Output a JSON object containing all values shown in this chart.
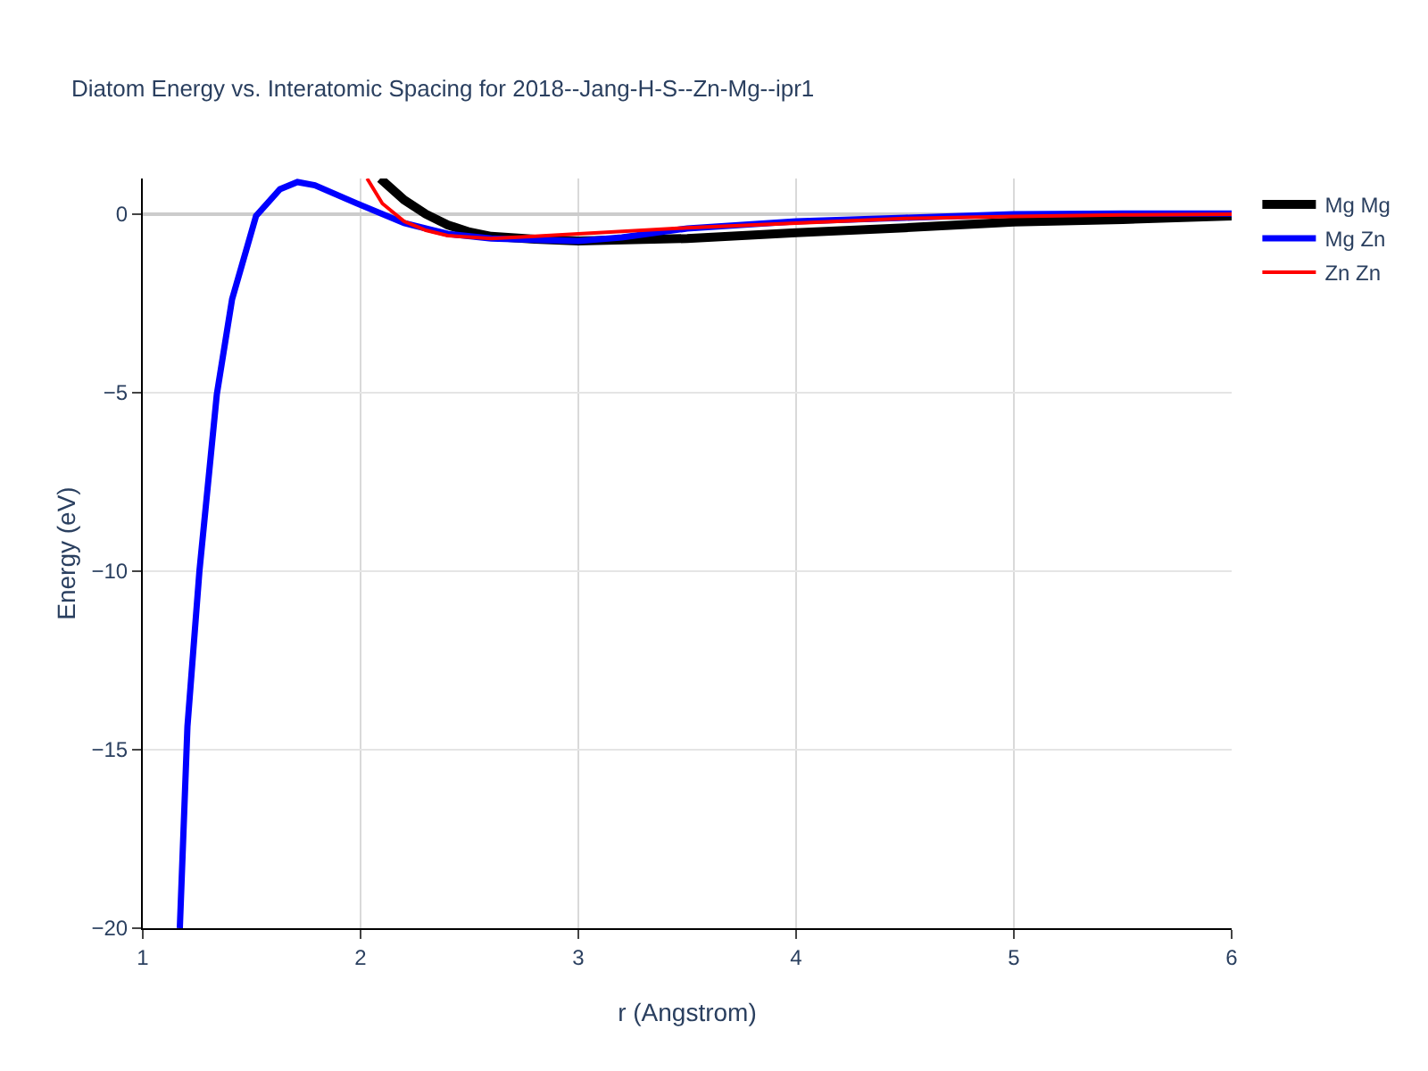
{
  "chart_data": {
    "type": "line",
    "title": "Diatom Energy vs. Interatomic Spacing for 2018--Jang-H-S--Zn-Mg--ipr1",
    "xlabel": "r (Angstrom)",
    "ylabel": "Energy (eV)",
    "xlim": [
      1,
      6
    ],
    "xticks": [
      1,
      2,
      3,
      4,
      5,
      6
    ],
    "ylim": [
      -20,
      1
    ],
    "yticks": [
      {
        "value": -20,
        "label": "−20"
      },
      {
        "value": -15,
        "label": "−15"
      },
      {
        "value": -10,
        "label": "−10"
      },
      {
        "value": -5,
        "label": "−5"
      },
      0
    ],
    "grid": true,
    "legend": "top right",
    "series": [
      {
        "name": "Mg Mg",
        "color": "#000000",
        "x": [
          2.09,
          2.2,
          2.3,
          2.4,
          2.5,
          2.6,
          2.8,
          3.0,
          3.5,
          4.0,
          4.5,
          5.0,
          5.5,
          6.0
        ],
        "values": [
          1.0,
          0.4,
          0.0,
          -0.3,
          -0.5,
          -0.62,
          -0.7,
          -0.75,
          -0.68,
          -0.52,
          -0.38,
          -0.22,
          -0.15,
          -0.05
        ]
      },
      {
        "name": "Mg Zn",
        "color": "#0000ff",
        "x": [
          1.17,
          1.205,
          1.26,
          1.34,
          1.41,
          1.52,
          1.63,
          1.71,
          1.79,
          1.98,
          2.2,
          2.4,
          2.6,
          2.8,
          3.0,
          3.2,
          3.5,
          4.0,
          4.5,
          5.0,
          5.5,
          6.0
        ],
        "values": [
          -20,
          -14.35,
          -10.0,
          -5.04,
          -2.38,
          -0.05,
          0.7,
          0.9,
          0.81,
          0.31,
          -0.25,
          -0.55,
          -0.68,
          -0.72,
          -0.75,
          -0.65,
          -0.4,
          -0.2,
          -0.1,
          0.0,
          0.02,
          0.02
        ]
      },
      {
        "name": "Zn Zn",
        "color": "#ff0000",
        "x": [
          2.03,
          2.1,
          2.2,
          2.3,
          2.4,
          2.6,
          2.8,
          3.0,
          3.5,
          4.0,
          4.5,
          5.0,
          5.5,
          6.0
        ],
        "values": [
          1.0,
          0.3,
          -0.2,
          -0.45,
          -0.6,
          -0.68,
          -0.62,
          -0.55,
          -0.38,
          -0.25,
          -0.12,
          -0.06,
          -0.02,
          0.0
        ]
      }
    ]
  }
}
